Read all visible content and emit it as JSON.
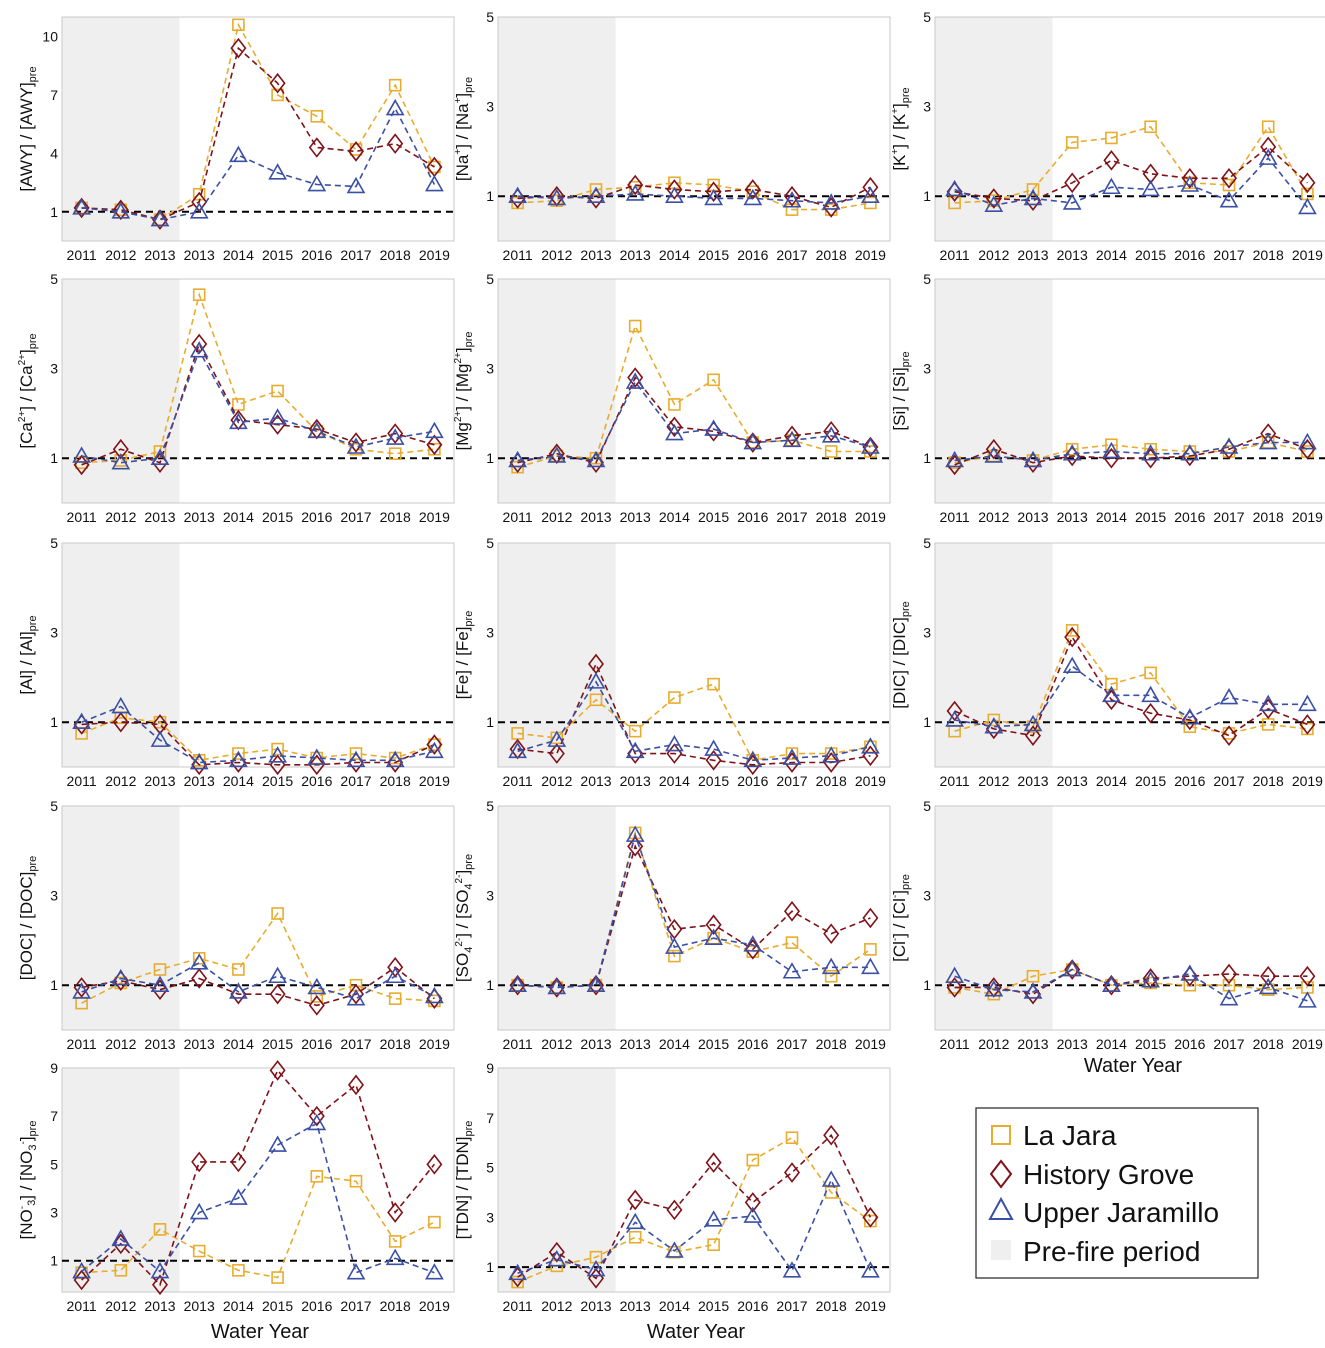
{
  "x_title": "Water Year",
  "legend": {
    "items": [
      {
        "label": "La Jara",
        "marker": "square",
        "color": "#e8ac2e"
      },
      {
        "label": "History Grove",
        "marker": "diamond",
        "color": "#7f1218"
      },
      {
        "label": "Upper Jaramillo",
        "marker": "triangle",
        "color": "#3a4fa6"
      },
      {
        "label": "Pre-fire period",
        "marker": "patch",
        "color": "#efefef"
      }
    ]
  },
  "chart_data": [
    {
      "type": "line",
      "ylabel": "[AWY] / [AWY]",
      "ylabel_sub": "pre",
      "categories": [
        "2011",
        "2012",
        "2013",
        "2013",
        "2014",
        "2015",
        "2016",
        "2017",
        "2018",
        "2019"
      ],
      "ylim": [
        -0.5,
        11
      ],
      "yticks": [
        "1",
        "4",
        "7",
        "10"
      ],
      "prefire_categories": 3,
      "reference": 1,
      "series": [
        {
          "name": "La Jara",
          "values": [
            1.2,
            1.1,
            0.6,
            1.9,
            10.6,
            7.0,
            5.9,
            4.2,
            7.5,
            3.3
          ]
        },
        {
          "name": "History Grove",
          "values": [
            1.2,
            1.1,
            0.6,
            1.5,
            9.4,
            7.6,
            4.3,
            4.1,
            4.5,
            3.3
          ]
        },
        {
          "name": "Upper Jaramillo",
          "values": [
            1.2,
            1.0,
            0.6,
            1.0,
            3.9,
            3.0,
            2.4,
            2.3,
            6.3,
            2.4
          ]
        }
      ]
    },
    {
      "type": "line",
      "ylabel": "[Na",
      "ylabel_sup": "+",
      "ylabel_mid": "] / [Na",
      "ylabel_sup2": "+",
      "ylabel_end": "]",
      "ylabel_sub": "pre",
      "categories": [
        "2011",
        "2012",
        "2013",
        "2013",
        "2014",
        "2015",
        "2016",
        "2017",
        "2018",
        "2019"
      ],
      "ylim": [
        0,
        5
      ],
      "yticks": [
        "1",
        "3",
        "5"
      ],
      "prefire_categories": 3,
      "reference": 1,
      "series": [
        {
          "name": "La Jara",
          "values": [
            0.85,
            0.9,
            1.15,
            1.2,
            1.3,
            1.25,
            1.1,
            0.7,
            0.7,
            0.85
          ]
        },
        {
          "name": "History Grove",
          "values": [
            0.95,
            1.0,
            0.95,
            1.25,
            1.15,
            1.1,
            1.15,
            1.0,
            0.75,
            1.2
          ]
        },
        {
          "name": "Upper Jaramillo",
          "values": [
            1.0,
            0.95,
            1.0,
            1.05,
            1.0,
            0.95,
            0.95,
            0.9,
            0.85,
            1.0
          ]
        }
      ]
    },
    {
      "type": "line",
      "ylabel": "[K",
      "ylabel_sup": "+",
      "ylabel_mid": "] / [K",
      "ylabel_sup2": "+",
      "ylabel_end": "]",
      "ylabel_sub": "pre",
      "categories": [
        "2011",
        "2012",
        "2013",
        "2013",
        "2014",
        "2015",
        "2016",
        "2017",
        "2018",
        "2019"
      ],
      "ylim": [
        0,
        5
      ],
      "yticks": [
        "1",
        "3",
        "5"
      ],
      "prefire_categories": 3,
      "reference": 1,
      "series": [
        {
          "name": "La Jara",
          "values": [
            0.85,
            0.9,
            1.15,
            2.2,
            2.3,
            2.55,
            1.3,
            1.25,
            2.55,
            1.05
          ]
        },
        {
          "name": "History Grove",
          "values": [
            1.1,
            0.95,
            0.9,
            1.3,
            1.8,
            1.5,
            1.4,
            1.4,
            2.1,
            1.3
          ]
        },
        {
          "name": "Upper Jaramillo",
          "values": [
            1.15,
            0.8,
            0.95,
            0.85,
            1.2,
            1.15,
            1.25,
            0.9,
            1.85,
            0.75
          ]
        }
      ]
    },
    {
      "type": "line",
      "ylabel": "[Ca",
      "ylabel_sup": "2+",
      "ylabel_mid": "] / [Ca",
      "ylabel_sup2": "2+",
      "ylabel_end": "]",
      "ylabel_sub": "pre",
      "categories": [
        "2011",
        "2012",
        "2013",
        "2013",
        "2014",
        "2015",
        "2016",
        "2017",
        "2018",
        "2019"
      ],
      "ylim": [
        0,
        5
      ],
      "yticks": [
        "1",
        "3",
        "5"
      ],
      "prefire_categories": 3,
      "reference": 1,
      "series": [
        {
          "name": "La Jara",
          "values": [
            0.9,
            0.95,
            1.15,
            4.65,
            2.2,
            2.5,
            1.6,
            1.2,
            1.1,
            1.2
          ]
        },
        {
          "name": "History Grove",
          "values": [
            0.85,
            1.2,
            0.9,
            3.55,
            1.85,
            1.75,
            1.65,
            1.35,
            1.55,
            1.3
          ]
        },
        {
          "name": "Upper Jaramillo",
          "values": [
            1.05,
            0.9,
            1.0,
            3.4,
            1.8,
            1.9,
            1.6,
            1.25,
            1.45,
            1.6
          ]
        }
      ]
    },
    {
      "type": "line",
      "ylabel": "[Mg",
      "ylabel_sup": "2+",
      "ylabel_mid": "] / [Mg",
      "ylabel_sup2": "2+",
      "ylabel_end": "]",
      "ylabel_sub": "pre",
      "categories": [
        "2011",
        "2012",
        "2013",
        "2013",
        "2014",
        "2015",
        "2016",
        "2017",
        "2018",
        "2019"
      ],
      "ylim": [
        0,
        5
      ],
      "yticks": [
        "1",
        "3",
        "5"
      ],
      "prefire_categories": 3,
      "reference": 1,
      "series": [
        {
          "name": "La Jara",
          "values": [
            0.8,
            1.05,
            1.0,
            3.95,
            2.2,
            2.75,
            1.35,
            1.4,
            1.15,
            1.15
          ]
        },
        {
          "name": "History Grove",
          "values": [
            0.9,
            1.1,
            0.9,
            2.8,
            1.7,
            1.6,
            1.35,
            1.5,
            1.6,
            1.25
          ]
        },
        {
          "name": "Upper Jaramillo",
          "values": [
            0.95,
            1.05,
            0.95,
            2.7,
            1.55,
            1.65,
            1.35,
            1.4,
            1.5,
            1.25
          ]
        }
      ]
    },
    {
      "type": "line",
      "ylabel": "[Si] / [Si]",
      "ylabel_sub": "pre",
      "categories": [
        "2011",
        "2012",
        "2013",
        "2013",
        "2014",
        "2015",
        "2016",
        "2017",
        "2018",
        "2019"
      ],
      "ylim": [
        0,
        5
      ],
      "yticks": [
        "1",
        "3",
        "5"
      ],
      "prefire_categories": 3,
      "reference": 1,
      "series": [
        {
          "name": "La Jara",
          "values": [
            0.9,
            1.05,
            0.95,
            1.2,
            1.3,
            1.2,
            1.15,
            1.15,
            1.35,
            1.15
          ]
        },
        {
          "name": "History Grove",
          "values": [
            0.85,
            1.2,
            0.9,
            1.05,
            1.0,
            1.0,
            1.05,
            1.2,
            1.55,
            1.2
          ]
        },
        {
          "name": "Upper Jaramillo",
          "values": [
            0.95,
            1.05,
            0.95,
            1.1,
            1.15,
            1.1,
            1.1,
            1.25,
            1.35,
            1.35
          ]
        }
      ]
    },
    {
      "type": "line",
      "ylabel": "[Al] / [Al]",
      "ylabel_sub": "pre",
      "categories": [
        "2011",
        "2012",
        "2013",
        "2013",
        "2014",
        "2015",
        "2016",
        "2017",
        "2018",
        "2019"
      ],
      "ylim": [
        0,
        5
      ],
      "yticks": [
        "1",
        "3",
        "5"
      ],
      "prefire_categories": 3,
      "reference": 1,
      "series": [
        {
          "name": "La Jara",
          "values": [
            0.75,
            1.1,
            1.0,
            0.15,
            0.3,
            0.4,
            0.2,
            0.3,
            0.2,
            0.5
          ]
        },
        {
          "name": "History Grove",
          "values": [
            0.95,
            1.0,
            0.95,
            0.05,
            0.1,
            0.05,
            0.05,
            0.1,
            0.1,
            0.5
          ]
        },
        {
          "name": "Upper Jaramillo",
          "values": [
            1.0,
            1.35,
            0.6,
            0.1,
            0.15,
            0.25,
            0.2,
            0.15,
            0.15,
            0.35
          ]
        }
      ]
    },
    {
      "type": "line",
      "ylabel": "[Fe] / [Fe]",
      "ylabel_sub": "pre",
      "categories": [
        "2011",
        "2012",
        "2013",
        "2013",
        "2014",
        "2015",
        "2016",
        "2017",
        "2018",
        "2019"
      ],
      "ylim": [
        0,
        5
      ],
      "yticks": [
        "1",
        "3",
        "5"
      ],
      "prefire_categories": 3,
      "reference": 1,
      "series": [
        {
          "name": "La Jara",
          "values": [
            0.75,
            0.65,
            1.5,
            0.8,
            1.55,
            1.85,
            0.15,
            0.3,
            0.3,
            0.45
          ]
        },
        {
          "name": "History Grove",
          "values": [
            0.4,
            0.3,
            2.3,
            0.3,
            0.3,
            0.15,
            0.05,
            0.1,
            0.1,
            0.25
          ]
        },
        {
          "name": "Upper Jaramillo",
          "values": [
            0.35,
            0.6,
            1.9,
            0.35,
            0.5,
            0.4,
            0.15,
            0.2,
            0.25,
            0.45
          ]
        }
      ]
    },
    {
      "type": "line",
      "ylabel": "[DIC] / [DIC]",
      "ylabel_sub": "pre",
      "categories": [
        "2011",
        "2012",
        "2013",
        "2013",
        "2014",
        "2015",
        "2016",
        "2017",
        "2018",
        "2019"
      ],
      "ylim": [
        0,
        5
      ],
      "yticks": [
        "1",
        "3",
        "5"
      ],
      "prefire_categories": 3,
      "reference": 1,
      "series": [
        {
          "name": "La Jara",
          "values": [
            0.8,
            1.05,
            0.9,
            3.05,
            1.85,
            2.1,
            0.9,
            0.75,
            0.95,
            0.85
          ]
        },
        {
          "name": "History Grove",
          "values": [
            1.25,
            0.85,
            0.7,
            2.9,
            1.5,
            1.2,
            1.05,
            0.7,
            1.3,
            0.95
          ]
        },
        {
          "name": "Upper Jaramillo",
          "values": [
            1.05,
            0.9,
            0.95,
            2.25,
            1.6,
            1.6,
            1.1,
            1.55,
            1.4,
            1.4
          ]
        }
      ]
    },
    {
      "type": "line",
      "ylabel": "[DOC] / [DOC]",
      "ylabel_sub": "pre",
      "categories": [
        "2011",
        "2012",
        "2013",
        "2013",
        "2014",
        "2015",
        "2016",
        "2017",
        "2018",
        "2019"
      ],
      "ylim": [
        0,
        5
      ],
      "yticks": [
        "1",
        "3",
        "5"
      ],
      "prefire_categories": 3,
      "reference": 1,
      "series": [
        {
          "name": "La Jara",
          "values": [
            0.6,
            1.05,
            1.35,
            1.6,
            1.35,
            2.6,
            0.75,
            1.0,
            0.7,
            0.65
          ]
        },
        {
          "name": "History Grove",
          "values": [
            0.95,
            1.1,
            0.9,
            1.15,
            0.8,
            0.8,
            0.55,
            0.8,
            1.4,
            0.7
          ]
        },
        {
          "name": "Upper Jaramillo",
          "values": [
            0.85,
            1.15,
            1.0,
            1.5,
            0.85,
            1.2,
            0.95,
            0.7,
            1.2,
            0.75
          ]
        }
      ]
    },
    {
      "type": "line",
      "ylabel": "[SO",
      "ylabel_sub4": "4",
      "ylabel_sup": "2-",
      "ylabel_mid": "] / [SO",
      "ylabel_sup2": "2-",
      "ylabel_end": "]",
      "ylabel_sub": "pre",
      "categories": [
        "2011",
        "2012",
        "2013",
        "2013",
        "2014",
        "2015",
        "2016",
        "2017",
        "2018",
        "2019"
      ],
      "ylim": [
        0,
        5
      ],
      "yticks": [
        "1",
        "3",
        "5"
      ],
      "prefire_categories": 3,
      "reference": 1,
      "series": [
        {
          "name": "La Jara",
          "values": [
            1.0,
            0.95,
            1.0,
            4.4,
            1.65,
            2.05,
            1.75,
            1.95,
            1.2,
            1.8
          ]
        },
        {
          "name": "History Grove",
          "values": [
            1.0,
            0.95,
            1.0,
            4.1,
            2.25,
            2.35,
            1.8,
            2.65,
            2.15,
            2.5
          ]
        },
        {
          "name": "Upper Jaramillo",
          "values": [
            1.0,
            0.95,
            1.0,
            4.35,
            1.85,
            2.05,
            1.9,
            1.3,
            1.4,
            1.4
          ]
        }
      ]
    },
    {
      "type": "line",
      "ylabel": "[Cl",
      "ylabel_sup": "-",
      "ylabel_mid": "] / [Cl",
      "ylabel_sup2": "-",
      "ylabel_end": "]",
      "ylabel_sub": "pre",
      "categories": [
        "2011",
        "2012",
        "2013",
        "2013",
        "2014",
        "2015",
        "2016",
        "2017",
        "2018",
        "2019"
      ],
      "ylim": [
        0,
        5
      ],
      "yticks": [
        "1",
        "3",
        "5"
      ],
      "prefire_categories": 3,
      "reference": 1,
      "series": [
        {
          "name": "La Jara",
          "values": [
            0.95,
            0.8,
            1.2,
            1.35,
            1.0,
            1.05,
            1.0,
            1.0,
            0.9,
            0.95
          ]
        },
        {
          "name": "History Grove",
          "values": [
            0.95,
            0.95,
            0.8,
            1.35,
            1.0,
            1.15,
            1.2,
            1.25,
            1.2,
            1.2
          ]
        },
        {
          "name": "Upper Jaramillo",
          "values": [
            1.2,
            0.9,
            0.85,
            1.35,
            1.0,
            1.1,
            1.25,
            0.7,
            0.95,
            0.65
          ]
        }
      ]
    },
    {
      "type": "line",
      "ylabel": "[NO",
      "ylabel_sup": "-",
      "ylabel_sub3": "3",
      "ylabel_mid": "] / [NO",
      "ylabel_sub32": "3",
      "ylabel_sup2": "-",
      "ylabel_end": "]",
      "ylabel_sub": "pre",
      "categories": [
        "2011",
        "2012",
        "2013",
        "2013",
        "2014",
        "2015",
        "2016",
        "2017",
        "2018",
        "2019"
      ],
      "ylim": [
        -0.3,
        9
      ],
      "yticks": [
        "1",
        "3",
        "5",
        "7",
        "9"
      ],
      "prefire_categories": 3,
      "reference": 1,
      "series": [
        {
          "name": "La Jara",
          "values": [
            0.5,
            0.6,
            2.3,
            1.4,
            0.6,
            0.3,
            4.5,
            4.3,
            1.8,
            2.6
          ]
        },
        {
          "name": "History Grove",
          "values": [
            0.2,
            1.7,
            0.0,
            5.1,
            5.1,
            8.9,
            7.0,
            8.3,
            3.0,
            5.0
          ]
        },
        {
          "name": "Upper Jaramillo",
          "values": [
            0.55,
            1.9,
            0.55,
            3.0,
            3.6,
            5.8,
            6.7,
            0.5,
            1.1,
            0.5
          ]
        }
      ]
    },
    {
      "type": "line",
      "ylabel": "[TDN] / [TDN]",
      "ylabel_sub": "pre",
      "categories": [
        "2011",
        "2012",
        "2013",
        "2013",
        "2014",
        "2015",
        "2016",
        "2017",
        "2018",
        "2019"
      ],
      "ylim": [
        0,
        9
      ],
      "yticks": [
        "1",
        "3",
        "5",
        "7",
        "9"
      ],
      "prefire_categories": 3,
      "reference": 1,
      "series": [
        {
          "name": "La Jara",
          "values": [
            0.4,
            1.05,
            1.4,
            2.2,
            1.6,
            1.9,
            5.3,
            6.2,
            4.0,
            2.85
          ]
        },
        {
          "name": "History Grove",
          "values": [
            0.6,
            1.6,
            0.55,
            3.7,
            3.3,
            5.2,
            3.6,
            4.8,
            6.3,
            3.0
          ]
        },
        {
          "name": "Upper Jaramillo",
          "values": [
            0.75,
            1.3,
            0.9,
            2.8,
            1.65,
            2.9,
            3.05,
            0.85,
            4.5,
            0.85
          ]
        }
      ]
    }
  ]
}
